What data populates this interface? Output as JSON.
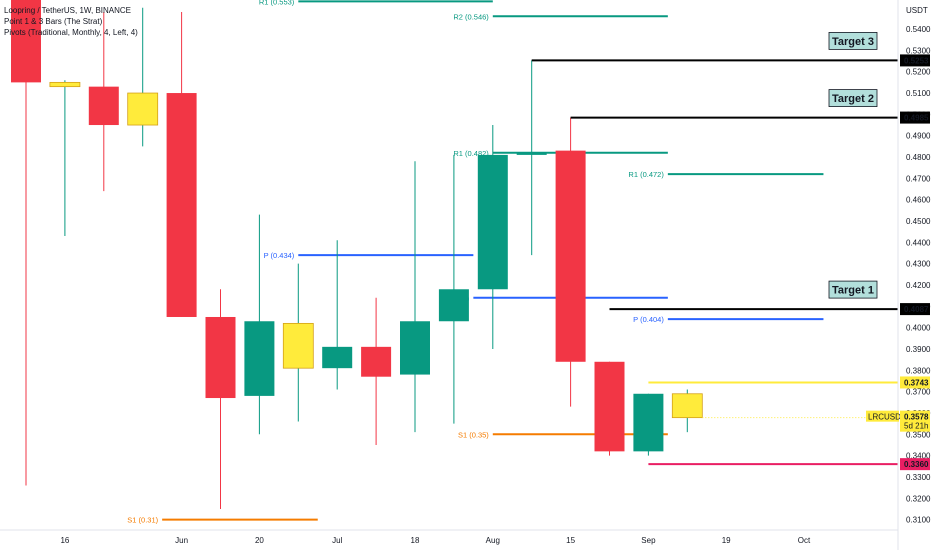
{
  "legend": {
    "title": "Loopring / TetherUS, 1W, BINANCE",
    "line2": "Point 1 & 3 Bars (The Strat)",
    "line3": "Pivots (Traditional, Monthly, 4, Left, 4)"
  },
  "chart_data": {
    "type": "candlestick",
    "currency_label": "USDT",
    "ylim": [
      0.307,
      0.548
    ],
    "price_ticks": [
      "0.5400",
      "0.5300",
      "0.5200",
      "0.5100",
      "0.5000",
      "0.4900",
      "0.4800",
      "0.4700",
      "0.4600",
      "0.4500",
      "0.4400",
      "0.4300",
      "0.4200",
      "0.4100",
      "0.4000",
      "0.3900",
      "0.3800",
      "0.3700",
      "0.3600",
      "0.3500",
      "0.3400",
      "0.3300",
      "0.3200",
      "0.3100"
    ],
    "date_ticks": [
      "16",
      "Jun",
      "20",
      "Jul",
      "18",
      "Aug",
      "15",
      "Sep",
      "19",
      "Oct"
    ],
    "colors": {
      "up": "#089981",
      "down": "#f23645",
      "inside": "#ffeb3b",
      "pivot_r": "#089981",
      "pivot_p": "#2962ff",
      "pivot_s": "#f57c00",
      "target": "#000000",
      "stop": "#e91e63"
    },
    "candles": [
      {
        "i": 0,
        "o": 0.571,
        "h": 0.59,
        "l": 0.326,
        "c": 0.515,
        "color": "down"
      },
      {
        "i": 1,
        "o": 0.513,
        "h": 0.516,
        "l": 0.443,
        "c": 0.515,
        "color": "inside"
      },
      {
        "i": 2,
        "o": 0.513,
        "h": 0.548,
        "l": 0.464,
        "c": 0.495,
        "color": "down"
      },
      {
        "i": 3,
        "o": 0.495,
        "h": 0.55,
        "l": 0.485,
        "c": 0.51,
        "color": "inside"
      },
      {
        "i": 4,
        "o": 0.51,
        "h": 0.548,
        "l": 0.405,
        "c": 0.405,
        "color": "down"
      },
      {
        "i": 5,
        "o": 0.405,
        "h": 0.418,
        "l": 0.315,
        "c": 0.367,
        "color": "down"
      },
      {
        "i": 6,
        "o": 0.368,
        "h": 0.453,
        "l": 0.35,
        "c": 0.403,
        "color": "up"
      },
      {
        "i": 7,
        "o": 0.402,
        "h": 0.43,
        "l": 0.356,
        "c": 0.381,
        "color": "inside"
      },
      {
        "i": 8,
        "o": 0.381,
        "h": 0.441,
        "l": 0.371,
        "c": 0.391,
        "color": "up"
      },
      {
        "i": 9,
        "o": 0.391,
        "h": 0.414,
        "l": 0.345,
        "c": 0.377,
        "color": "down"
      },
      {
        "i": 10,
        "o": 0.378,
        "h": 0.478,
        "l": 0.351,
        "c": 0.403,
        "color": "up"
      },
      {
        "i": 11,
        "o": 0.403,
        "h": 0.481,
        "l": 0.355,
        "c": 0.418,
        "color": "up"
      },
      {
        "i": 12,
        "o": 0.418,
        "h": 0.495,
        "l": 0.39,
        "c": 0.481,
        "color": "up"
      },
      {
        "i": 13,
        "o": 0.481,
        "h": 0.5253,
        "l": 0.434,
        "c": 0.482,
        "color": "up"
      },
      {
        "i": 14,
        "o": 0.483,
        "h": 0.4985,
        "l": 0.363,
        "c": 0.384,
        "color": "down"
      },
      {
        "i": 15,
        "o": 0.384,
        "h": 0.384,
        "l": 0.34,
        "c": 0.342,
        "color": "down"
      },
      {
        "i": 16,
        "o": 0.342,
        "h": 0.369,
        "l": 0.34,
        "c": 0.369,
        "color": "up"
      },
      {
        "i": 17,
        "o": 0.369,
        "h": 0.371,
        "l": 0.351,
        "c": 0.3578,
        "color": "inside"
      }
    ],
    "pivot_levels": [
      {
        "label": "R1 (0.553)",
        "value": 0.553,
        "from": 7,
        "to": 12,
        "color": "pivot_r"
      },
      {
        "label": "R2 (0.546)",
        "value": 0.546,
        "from": 12,
        "to": 16.5,
        "color": "pivot_r"
      },
      {
        "label": "R1 (0.482)",
        "value": 0.482,
        "from": 12,
        "to": 16.5,
        "color": "pivot_r"
      },
      {
        "label": "R1 (0.472)",
        "value": 0.472,
        "from": 16.5,
        "to": 20.5,
        "color": "pivot_r"
      },
      {
        "label": "P (0.434)",
        "value": 0.434,
        "from": 7,
        "to": 11.5,
        "color": "pivot_p"
      },
      {
        "label": "(0.414)",
        "value": 0.414,
        "from": 11.5,
        "to": 16.5,
        "color": "pivot_p"
      },
      {
        "label": "P (0.404)",
        "value": 0.404,
        "from": 16.5,
        "to": 20.5,
        "color": "pivot_p"
      },
      {
        "label": "S1 (0.35)",
        "value": 0.35,
        "from": 12,
        "to": 16.5,
        "color": "pivot_s"
      },
      {
        "label": "S1 (0.31)",
        "value": 0.31,
        "from": 3.5,
        "to": 7.5,
        "color": "pivot_s"
      }
    ],
    "target_lines": [
      {
        "value": 0.5253,
        "from": 13,
        "price_label": "0.5253",
        "box_label": "Target 3",
        "color": "target"
      },
      {
        "value": 0.4985,
        "from": 14,
        "price_label": "0.4985",
        "box_label": "Target 2",
        "color": "target"
      },
      {
        "value": 0.4087,
        "from": 15,
        "price_label": "0.4087",
        "box_label": "Target 1",
        "color": "target"
      },
      {
        "value": 0.3743,
        "from": 16,
        "price_label": "0.3743",
        "box_label": "",
        "color": "inside"
      },
      {
        "value": 0.336,
        "from": 16,
        "price_label": "0.3360",
        "box_label": "",
        "color": "stop"
      }
    ],
    "current": {
      "symbol": "LRCUSDT",
      "price": "0.3578",
      "countdown": "5d 21h",
      "value": 0.3578
    }
  }
}
